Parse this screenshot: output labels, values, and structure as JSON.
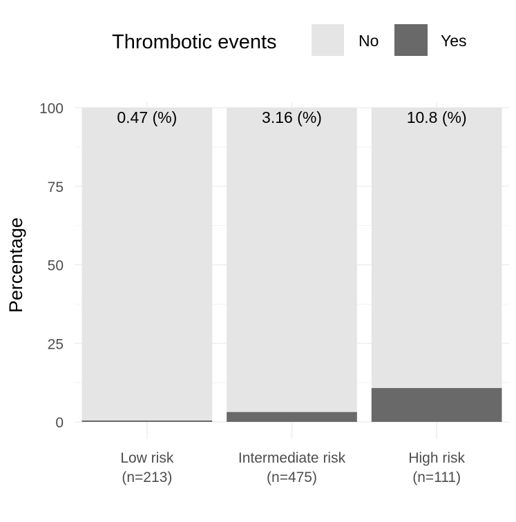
{
  "chart_data": {
    "type": "bar",
    "stacked": true,
    "categories": [
      "Low risk",
      "Intermediate risk",
      "High risk"
    ],
    "category_counts": [
      "(n=213)",
      "(n=475)",
      "(n=111)"
    ],
    "series": [
      {
        "name": "No",
        "values": [
          99.53,
          96.84,
          89.2
        ],
        "color": "#e5e5e5"
      },
      {
        "name": "Yes",
        "values": [
          0.47,
          3.16,
          10.8
        ],
        "color": "#696969"
      }
    ],
    "data_labels": [
      "0.47 (%)",
      "3.16 (%)",
      "10.8 (%)"
    ],
    "ylabel": "Percentage",
    "xlabel": "",
    "ylim": [
      0,
      100
    ],
    "yticks": [
      0,
      25,
      50,
      75,
      100
    ],
    "ytick_labels": [
      "0",
      "25",
      "50",
      "75",
      "100"
    ],
    "legend": {
      "title": "Thrombotic events",
      "position": "top"
    },
    "grid": true
  }
}
